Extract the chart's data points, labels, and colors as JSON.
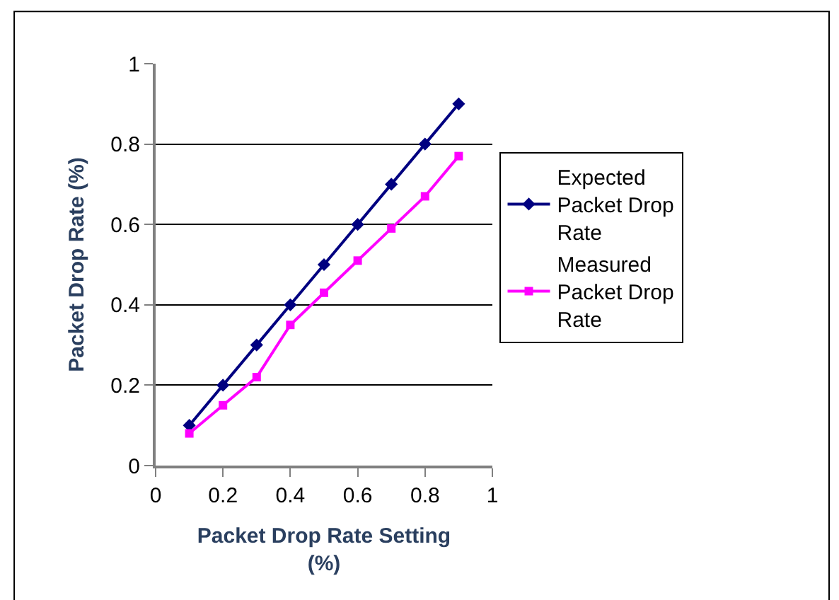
{
  "chart_data": {
    "type": "line",
    "xlabel": "Packet Drop Rate Setting (%)",
    "ylabel": "Packet Drop Rate (%)",
    "x": [
      0.1,
      0.2,
      0.3,
      0.4,
      0.5,
      0.6,
      0.7,
      0.8,
      0.9
    ],
    "series": [
      {
        "name": "Expected Packet Drop Rate",
        "color": "#000080",
        "marker": "diamond",
        "values": [
          0.1,
          0.2,
          0.3,
          0.4,
          0.5,
          0.6,
          0.7,
          0.8,
          0.9
        ]
      },
      {
        "name": "Measured Packet Drop Rate",
        "color": "#ff00ff",
        "marker": "square",
        "values": [
          0.08,
          0.15,
          0.22,
          0.35,
          0.43,
          0.51,
          0.59,
          0.67,
          0.77
        ]
      }
    ],
    "xlim": [
      0,
      1
    ],
    "xticks": [
      0,
      0.2,
      0.4,
      0.6,
      0.8,
      1
    ],
    "ylim": [
      0,
      1
    ],
    "yticks": [
      0,
      0.2,
      0.4,
      0.6,
      0.8,
      1
    ],
    "grid": "y",
    "legend": "right",
    "line_style": "solid"
  }
}
